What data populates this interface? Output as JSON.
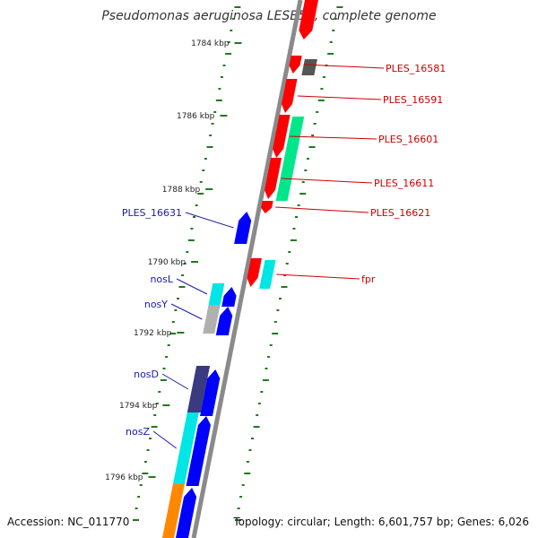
{
  "title": "Pseudomonas aeruginosa LESB58, complete genome",
  "accession": "Accession: NC_011770",
  "topology": "Topology: circular; Length: 6,601,757 bp; Genes: 6,026",
  "colors": {
    "backbone": "#8a8a8a",
    "tick": "#1f7a1f",
    "label_forward": "#cc0000",
    "label_reverse": "#1a1aaa"
  },
  "scale_ticks": [
    {
      "label": "1784 kbp",
      "kbp": 1784
    },
    {
      "label": "1786 kbp",
      "kbp": 1786
    },
    {
      "label": "1788 kbp",
      "kbp": 1788
    },
    {
      "label": "1790 kbp",
      "kbp": 1790
    },
    {
      "label": "1792 kbp",
      "kbp": 1792
    },
    {
      "label": "1794 kbp",
      "kbp": 1794
    },
    {
      "label": "1796 kbp",
      "kbp": 1796
    }
  ],
  "forward_strand_genes": [
    {
      "label": "",
      "color": "#ff0000"
    },
    {
      "label": "PLES_16581",
      "color": "#ff0000"
    },
    {
      "label": "",
      "color": "#555555"
    },
    {
      "label": "PLES_16591",
      "color": "#ff0000"
    },
    {
      "label": "PLES_16601",
      "color": "#ff0000"
    },
    {
      "label": "",
      "color": "#00e68a"
    },
    {
      "label": "PLES_16611",
      "color": "#ff0000"
    },
    {
      "label": "PLES_16621",
      "color": "#ff0000"
    },
    {
      "label": "",
      "color": "#ff0000"
    },
    {
      "label": "fpr",
      "color": "#00e5e5"
    }
  ],
  "reverse_strand_genes": [
    {
      "label": "PLES_16631",
      "color": "#0000ff"
    },
    {
      "label": "nosL",
      "color": "#00e5e5"
    },
    {
      "label": "",
      "color": "#0000ff"
    },
    {
      "label": "nosY",
      "color": "#b0b0b0"
    },
    {
      "label": "",
      "color": "#0000ff"
    },
    {
      "label": "nosD",
      "color": "#3a3a80"
    },
    {
      "label": "",
      "color": "#0000ff"
    },
    {
      "label": "nosZ",
      "color": "#00e5e5"
    },
    {
      "label": "",
      "color": "#0000ff"
    },
    {
      "label": "",
      "color": "#ff8800"
    },
    {
      "label": "",
      "color": "#0000ff"
    }
  ]
}
